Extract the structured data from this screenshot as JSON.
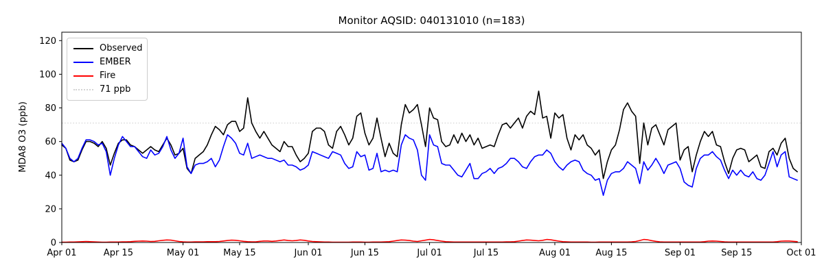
{
  "chart_data": {
    "type": "line",
    "title": "Monitor AQSID: 040131010 (n=183)",
    "ylabel": "MDA8 O3 (ppb)",
    "xlabel": "",
    "n_points": 183,
    "grid": false,
    "legend_position": "upper left",
    "x_tick_labels": [
      "Apr 01",
      "Apr 15",
      "May 01",
      "May 15",
      "Jun 01",
      "Jun 15",
      "Jul 01",
      "Jul 15",
      "Aug 01",
      "Aug 15",
      "Sep 01",
      "Sep 15",
      "Oct 01"
    ],
    "x_tick_days": [
      0,
      14,
      30,
      44,
      61,
      75,
      91,
      105,
      122,
      136,
      153,
      167,
      183
    ],
    "y_ticks": [
      0,
      20,
      40,
      60,
      80,
      100,
      120
    ],
    "ylim": [
      0,
      125
    ],
    "xlim_days": [
      0,
      183
    ],
    "threshold": {
      "label": "71 ppb",
      "value": 71,
      "color": "#d3d3d3",
      "style": "dotted"
    },
    "legend": [
      {
        "label": "Observed",
        "color": "#000000",
        "style": "solid"
      },
      {
        "label": "EMBER",
        "color": "#0000ff",
        "style": "solid"
      },
      {
        "label": "Fire",
        "color": "#ff0000",
        "style": "solid"
      },
      {
        "label": "71 ppb",
        "color": "#d3d3d3",
        "style": "dotted"
      }
    ],
    "series": [
      {
        "name": "Observed",
        "color": "#000000",
        "values": [
          58,
          56,
          49,
          48,
          49,
          55,
          60,
          60,
          59,
          57,
          60,
          56,
          46,
          53,
          59,
          61,
          61,
          58,
          57,
          55,
          53,
          55,
          57,
          55,
          54,
          58,
          62,
          58,
          52,
          53,
          56,
          44,
          41,
          50,
          52,
          54,
          58,
          64,
          69,
          67,
          64,
          70,
          72,
          72,
          66,
          68,
          86,
          71,
          66,
          62,
          66,
          62,
          58,
          56,
          54,
          60,
          57,
          57,
          52,
          48,
          50,
          53,
          66,
          68,
          68,
          66,
          58,
          56,
          66,
          69,
          64,
          58,
          62,
          75,
          77,
          65,
          58,
          62,
          74,
          62,
          51,
          59,
          53,
          51,
          70,
          82,
          77,
          79,
          82,
          70,
          57,
          80,
          74,
          73,
          60,
          57,
          58,
          64,
          59,
          65,
          60,
          64,
          58,
          62,
          56,
          57,
          58,
          57,
          64,
          70,
          71,
          68,
          71,
          74,
          68,
          75,
          78,
          76,
          90,
          74,
          75,
          62,
          77,
          74,
          76,
          62,
          55,
          64,
          61,
          64,
          58,
          56,
          52,
          55,
          38,
          48,
          55,
          58,
          67,
          79,
          83,
          78,
          75,
          47,
          71,
          58,
          68,
          70,
          64,
          58,
          67,
          69,
          71,
          49,
          55,
          57,
          42,
          52,
          60,
          66,
          63,
          66,
          58,
          57,
          48,
          41,
          50,
          55,
          56,
          55,
          48,
          50,
          52,
          45,
          44,
          54,
          56,
          52,
          59,
          62,
          50,
          44,
          42
        ]
      },
      {
        "name": "EMBER",
        "color": "#0000ff",
        "values": [
          59,
          56,
          50,
          48,
          50,
          56,
          61,
          61,
          60,
          58,
          59,
          54,
          40,
          50,
          58,
          63,
          60,
          57,
          57,
          54,
          51,
          50,
          55,
          52,
          53,
          57,
          63,
          55,
          50,
          53,
          62,
          45,
          41,
          46,
          47,
          47,
          48,
          50,
          45,
          49,
          57,
          64,
          62,
          59,
          53,
          52,
          59,
          50,
          51,
          52,
          51,
          50,
          50,
          49,
          48,
          49,
          46,
          46,
          45,
          43,
          44,
          46,
          54,
          53,
          52,
          51,
          50,
          54,
          53,
          52,
          47,
          44,
          45,
          54,
          51,
          52,
          43,
          44,
          53,
          42,
          43,
          42,
          43,
          42,
          58,
          64,
          62,
          61,
          55,
          40,
          37,
          64,
          58,
          57,
          47,
          46,
          46,
          43,
          40,
          39,
          43,
          47,
          38,
          38,
          41,
          42,
          44,
          41,
          44,
          45,
          47,
          50,
          50,
          48,
          45,
          44,
          48,
          51,
          52,
          52,
          55,
          53,
          48,
          45,
          43,
          46,
          48,
          49,
          48,
          43,
          41,
          40,
          37,
          38,
          28,
          37,
          41,
          42,
          42,
          44,
          48,
          46,
          44,
          35,
          48,
          43,
          46,
          50,
          46,
          41,
          46,
          47,
          48,
          44,
          36,
          34,
          33,
          44,
          50,
          52,
          52,
          54,
          51,
          49,
          43,
          38,
          43,
          40,
          43,
          40,
          39,
          42,
          38,
          37,
          40,
          47,
          54,
          45,
          52,
          54,
          39,
          38,
          37
        ]
      },
      {
        "name": "Fire",
        "color": "#ff0000",
        "values": [
          0.2,
          0.2,
          0.3,
          0.3,
          0.4,
          0.5,
          0.6,
          0.5,
          0.4,
          0.3,
          0.2,
          0.2,
          0.3,
          0.3,
          0.3,
          0.4,
          0.4,
          0.5,
          0.7,
          0.8,
          0.9,
          0.8,
          0.6,
          0.7,
          1.0,
          1.3,
          1.5,
          1.4,
          1.0,
          0.6,
          0.4,
          0.3,
          0.3,
          0.4,
          0.4,
          0.4,
          0.5,
          0.5,
          0.5,
          0.6,
          0.9,
          1.2,
          1.4,
          1.3,
          1.0,
          0.7,
          0.5,
          0.4,
          0.4,
          0.7,
          0.9,
          0.9,
          0.7,
          0.9,
          1.2,
          1.5,
          1.2,
          1.0,
          1.2,
          1.5,
          1.3,
          0.9,
          0.6,
          0.5,
          0.4,
          0.3,
          0.3,
          0.2,
          0.2,
          0.2,
          0.2,
          0.2,
          0.3,
          0.3,
          0.3,
          0.2,
          0.2,
          0.3,
          0.3,
          0.3,
          0.4,
          0.5,
          0.8,
          1.2,
          1.5,
          1.4,
          1.2,
          0.8,
          0.6,
          1.0,
          1.4,
          1.8,
          1.6,
          1.2,
          0.8,
          0.5,
          0.4,
          0.3,
          0.3,
          0.3,
          0.3,
          0.3,
          0.3,
          0.3,
          0.3,
          0.3,
          0.3,
          0.3,
          0.3,
          0.3,
          0.4,
          0.4,
          0.5,
          0.8,
          1.2,
          1.5,
          1.4,
          1.2,
          1.0,
          1.3,
          1.8,
          1.6,
          1.2,
          0.8,
          0.5,
          0.4,
          0.3,
          0.3,
          0.3,
          0.3,
          0.3,
          0.2,
          0.2,
          0.3,
          0.3,
          0.3,
          0.3,
          0.3,
          0.3,
          0.3,
          0.3,
          0.4,
          0.6,
          1.2,
          1.8,
          1.6,
          1.1,
          0.7,
          0.4,
          0.3,
          0.3,
          0.3,
          0.3,
          0.3,
          0.3,
          0.3,
          0.3,
          0.3,
          0.3,
          0.5,
          0.8,
          0.9,
          0.8,
          0.6,
          0.4,
          0.3,
          0.3,
          0.3,
          0.3,
          0.3,
          0.3,
          0.3,
          0.3,
          0.3,
          0.3,
          0.3,
          0.3,
          0.5,
          0.8,
          0.9,
          0.9,
          0.7,
          0.5
        ]
      }
    ]
  }
}
